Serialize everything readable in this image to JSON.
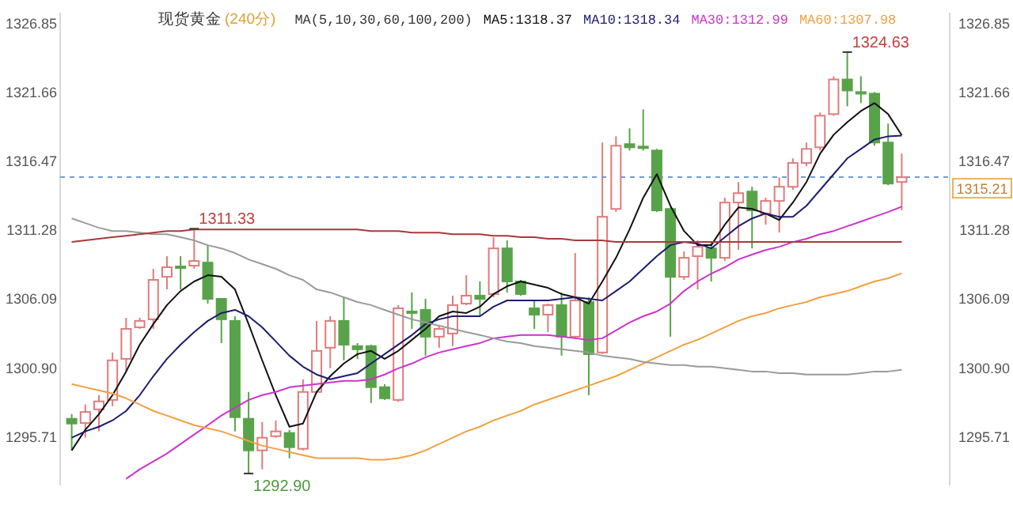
{
  "chart_data": {
    "type": "candlestick",
    "title": "现货黄金",
    "subtitle": "(240分)",
    "annotations": [
      "MA(5,10,30,60,100,200)",
      "MA5:1318.37",
      "MA10:1318.34",
      "MA30:1312.99",
      "MA60:1307.98",
      {
        "text": "1311.33",
        "y": 1311.33
      },
      "1292.90",
      "1324.63"
    ],
    "categories": [
      null,
      null,
      null,
      null,
      null,
      null,
      null,
      null,
      null,
      null,
      null,
      null,
      null,
      null,
      null,
      null,
      null,
      null,
      null,
      null,
      null,
      null,
      null,
      null,
      null,
      null,
      null,
      null,
      null,
      null,
      null,
      null,
      null,
      null,
      null,
      null,
      null,
      null,
      null,
      null,
      null,
      null,
      null,
      null,
      null,
      null,
      null,
      null,
      null,
      null,
      null,
      null,
      null,
      null,
      null,
      null,
      null,
      null,
      null,
      null,
      null,
      null
    ],
    "ohlc": [
      [
        1297.02,
        1297.37,
        1294.64,
        1296.66
      ],
      [
        1296.7,
        1298.1,
        1295.6,
        1297.53
      ],
      [
        1297.73,
        1298.8,
        1296.07,
        1298.33
      ],
      [
        1298.44,
        1302.01,
        1297.97,
        1301.42
      ],
      [
        1301.53,
        1304.62,
        1300.58,
        1303.79
      ],
      [
        1303.91,
        1304.62,
        1303.79,
        1304.39
      ],
      [
        1304.51,
        1308.31,
        1303.79,
        1307.48
      ],
      [
        1307.71,
        1309.26,
        1306.76,
        1308.43
      ],
      [
        1308.49,
        1309.26,
        1306.76,
        1308.43
      ],
      [
        1308.55,
        1311.33,
        1308.31,
        1308.9
      ],
      [
        1308.78,
        1310.09,
        1305.69,
        1306.05
      ],
      [
        1306.05,
        1306.05,
        1302.72,
        1304.51
      ],
      [
        1304.39,
        1304.74,
        1296.07,
        1297.14
      ],
      [
        1297.02,
        1299.04,
        1292.9,
        1294.64
      ],
      [
        1294.64,
        1296.78,
        1293.21,
        1295.59
      ],
      [
        1295.71,
        1296.9,
        1295.59,
        1296.07
      ],
      [
        1295.95,
        1296.19,
        1294.05,
        1294.88
      ],
      [
        1294.76,
        1299.99,
        1294.64,
        1299.04
      ],
      [
        1299.04,
        1304.39,
        1298.92,
        1302.13
      ],
      [
        1302.37,
        1304.74,
        1300.82,
        1304.39
      ],
      [
        1304.39,
        1306.17,
        1301.42,
        1302.6
      ],
      [
        1302.49,
        1302.72,
        1301.53,
        1302.25
      ],
      [
        1302.49,
        1302.6,
        1298.21,
        1299.4
      ],
      [
        1299.4,
        1299.63,
        1298.44,
        1298.56
      ],
      [
        1298.44,
        1305.58,
        1298.3,
        1305.34
      ],
      [
        1305.1,
        1306.53,
        1303.79,
        1305.04
      ],
      [
        1305.22,
        1306.05,
        1301.77,
        1303.2
      ],
      [
        1303.2,
        1304.03,
        1302.37,
        1303.79
      ],
      [
        1303.44,
        1306.29,
        1302.49,
        1305.58
      ],
      [
        1305.69,
        1307.83,
        1305.58,
        1306.29
      ],
      [
        1306.29,
        1307.36,
        1304.74,
        1306.05
      ],
      [
        1306.41,
        1310.69,
        1306.17,
        1309.85
      ],
      [
        1309.85,
        1310.45,
        1306.53,
        1307.36
      ],
      [
        1307.36,
        1307.48,
        1306.29,
        1306.41
      ],
      [
        1305.34,
        1305.93,
        1303.79,
        1304.86
      ],
      [
        1304.86,
        1305.69,
        1303.55,
        1305.58
      ],
      [
        1305.58,
        1306.53,
        1301.77,
        1303.2
      ],
      [
        1303.2,
        1309.5,
        1303.1,
        1305.93
      ],
      [
        1305.81,
        1306.17,
        1298.8,
        1301.89
      ],
      [
        1302.01,
        1317.82,
        1301.89,
        1312.23
      ],
      [
        1312.82,
        1318.29,
        1312.6,
        1317.58
      ],
      [
        1317.7,
        1318.89,
        1317.22,
        1317.46
      ],
      [
        1317.52,
        1320.31,
        1317.22,
        1317.4
      ],
      [
        1317.22,
        1317.34,
        1312.59,
        1312.71
      ],
      [
        1312.82,
        1312.94,
        1303.2,
        1307.71
      ],
      [
        1307.71,
        1309.62,
        1307.48,
        1309.14
      ],
      [
        1309.26,
        1310.45,
        1306.76,
        1309.97
      ],
      [
        1309.85,
        1310.33,
        1307.36,
        1309.14
      ],
      [
        1309.14,
        1313.66,
        1308.9,
        1313.3
      ],
      [
        1313.3,
        1314.85,
        1309.74,
        1314.01
      ],
      [
        1314.13,
        1314.49,
        1309.85,
        1312.71
      ],
      [
        1312.47,
        1313.66,
        1311.64,
        1313.42
      ],
      [
        1313.42,
        1315.2,
        1311.04,
        1314.49
      ],
      [
        1314.49,
        1316.63,
        1314.25,
        1316.28
      ],
      [
        1316.28,
        1317.82,
        1316.04,
        1317.34
      ],
      [
        1317.46,
        1320.08,
        1317.22,
        1319.84
      ],
      [
        1319.96,
        1322.81,
        1319.84,
        1322.57
      ],
      [
        1322.57,
        1324.63,
        1320.55,
        1321.74
      ],
      [
        1321.62,
        1322.81,
        1320.79,
        1321.5
      ],
      [
        1321.5,
        1321.62,
        1317.58,
        1317.82
      ],
      [
        1317.82,
        1319.24,
        1314.61,
        1314.73
      ],
      [
        1314.85,
        1316.99,
        1312.71,
        1315.21
      ]
    ],
    "colors": [
      "#58a34a",
      "#e07b7b",
      "#e07b7b",
      "#e07b7b",
      "#e07b7b",
      "#e07b7b",
      "#e07b7b",
      "#e07b7b",
      "#58a34a",
      "#e07b7b",
      "#58a34a",
      "#58a34a",
      "#58a34a",
      "#58a34a",
      "#e07b7b",
      "#e07b7b",
      "#58a34a",
      "#e07b7b",
      "#e07b7b",
      "#e07b7b",
      "#58a34a",
      "#58a34a",
      "#58a34a",
      "#58a34a",
      "#e07b7b",
      "#58a34a",
      "#58a34a",
      "#e07b7b",
      "#e07b7b",
      "#e07b7b",
      "#58a34a",
      "#e07b7b",
      "#58a34a",
      "#58a34a",
      "#58a34a",
      "#e07b7b",
      "#58a34a",
      "#e07b7b",
      "#58a34a",
      "#e07b7b",
      "#e07b7b",
      "#58a34a",
      "#58a34a",
      "#58a34a",
      "#58a34a",
      "#e07b7b",
      "#e07b7b",
      "#58a34a",
      "#e07b7b",
      "#e07b7b",
      "#58a34a",
      "#e07b7b",
      "#e07b7b",
      "#e07b7b",
      "#e07b7b",
      "#e07b7b",
      "#e07b7b",
      "#58a34a",
      "#58a34a",
      "#58a34a",
      "#58a34a",
      "#e07b7b"
    ],
    "series": [
      {
        "type": "line",
        "color": "#111111",
        "values": [
          1294.64,
          1296.19,
          1297.37,
          1298.8,
          1300.58,
          1302.6,
          1304.15,
          1305.58,
          1306.64,
          1307.36,
          1307.83,
          1307.71,
          1306.76,
          1304.15,
          1301.42,
          1298.8,
          1296.42,
          1296.66,
          1299.04,
          1300.23,
          1301.18,
          1301.89,
          1302.13,
          1301.53,
          1302.13,
          1302.96,
          1303.79,
          1304.74,
          1305.1,
          1304.98,
          1305.46,
          1306.41,
          1307.0,
          1307.36,
          1307.12,
          1306.88,
          1306.41,
          1306.17,
          1305.69,
          1307.36,
          1309.14,
          1311.28,
          1313.66,
          1315.44,
          1313.06,
          1311.16,
          1310.09,
          1310.09,
          1311.64,
          1312.94,
          1312.82,
          1312.47,
          1311.99,
          1313.3,
          1314.85,
          1316.98,
          1318.41,
          1319.36,
          1320.19,
          1320.79,
          1319.96,
          1318.37
        ]
      },
      {
        "type": "line",
        "color": "#1c1c6e",
        "values": [
          1295.59,
          1296.07,
          1296.42,
          1296.9,
          1297.61,
          1298.8,
          1300.23,
          1301.53,
          1302.6,
          1303.55,
          1304.39,
          1304.98,
          1305.22,
          1304.74,
          1303.91,
          1302.84,
          1301.77,
          1300.94,
          1300.35,
          1299.99,
          1300.23,
          1300.46,
          1301.18,
          1301.89,
          1302.6,
          1303.32,
          1304.15,
          1304.51,
          1304.74,
          1304.74,
          1304.74,
          1305.46,
          1305.93,
          1305.93,
          1305.93,
          1305.93,
          1306.05,
          1306.17,
          1306.05,
          1305.93,
          1306.64,
          1307.36,
          1308.31,
          1309.26,
          1310.09,
          1310.33,
          1310.21,
          1309.85,
          1310.69,
          1311.52,
          1312.11,
          1312.47,
          1312.23,
          1312.23,
          1313.06,
          1314.25,
          1315.44,
          1316.63,
          1317.34,
          1318.05,
          1318.29,
          1318.34
        ]
      },
      {
        "type": "line",
        "color": "#cc33cc",
        "values": [
          null,
          null,
          null,
          null,
          1292.5,
          1293.21,
          1293.81,
          1294.4,
          1295.12,
          1295.83,
          1296.54,
          1297.26,
          1297.85,
          1298.44,
          1298.8,
          1299.04,
          1299.39,
          1299.51,
          1299.63,
          1299.75,
          1299.87,
          1299.87,
          1299.99,
          1300.35,
          1300.82,
          1301.18,
          1301.65,
          1302.01,
          1302.25,
          1302.49,
          1302.72,
          1303.08,
          1303.2,
          1303.32,
          1303.32,
          1303.32,
          1303.2,
          1303.08,
          1302.96,
          1303.08,
          1303.67,
          1304.27,
          1304.74,
          1305.1,
          1305.69,
          1306.64,
          1307.36,
          1307.95,
          1308.43,
          1309.02,
          1309.38,
          1309.73,
          1309.97,
          1310.33,
          1310.57,
          1310.92,
          1311.16,
          1311.52,
          1311.87,
          1312.23,
          1312.59,
          1312.99
        ]
      },
      {
        "type": "line",
        "color": "#f0a040",
        "values": [
          1299.63,
          1299.39,
          1299.16,
          1298.92,
          1298.56,
          1298.09,
          1297.61,
          1297.26,
          1296.9,
          1296.54,
          1296.3,
          1296.07,
          1295.71,
          1295.35,
          1295.0,
          1294.76,
          1294.52,
          1294.28,
          1294.05,
          1294.05,
          1294.05,
          1294.05,
          1293.93,
          1293.93,
          1294.05,
          1294.28,
          1294.64,
          1295.12,
          1295.59,
          1296.07,
          1296.42,
          1296.9,
          1297.26,
          1297.61,
          1298.09,
          1298.44,
          1298.8,
          1299.16,
          1299.51,
          1299.87,
          1300.23,
          1300.7,
          1301.18,
          1301.65,
          1302.13,
          1302.6,
          1302.96,
          1303.44,
          1303.91,
          1304.39,
          1304.74,
          1304.98,
          1305.34,
          1305.58,
          1305.81,
          1306.17,
          1306.41,
          1306.64,
          1307.0,
          1307.36,
          1307.6,
          1307.98
        ]
      },
      {
        "type": "line",
        "color": "#9a9a9a",
        "values": [
          1312.11,
          1311.76,
          1311.4,
          1311.16,
          1311.16,
          1311.04,
          1310.92,
          1310.92,
          1310.69,
          1310.45,
          1310.09,
          1309.85,
          1309.5,
          1309.02,
          1308.67,
          1308.31,
          1307.83,
          1307.48,
          1306.76,
          1306.53,
          1306.17,
          1305.81,
          1305.58,
          1305.22,
          1304.86,
          1304.51,
          1304.27,
          1304.03,
          1303.79,
          1303.55,
          1303.32,
          1303.08,
          1302.84,
          1302.72,
          1302.49,
          1302.37,
          1302.25,
          1302.13,
          1302.01,
          1301.77,
          1301.65,
          1301.53,
          1301.3,
          1301.18,
          1301.06,
          1301.06,
          1300.94,
          1300.94,
          1300.82,
          1300.7,
          1300.58,
          1300.58,
          1300.46,
          1300.46,
          1300.35,
          1300.35,
          1300.35,
          1300.35,
          1300.46,
          1300.58,
          1300.58,
          1300.7
        ]
      },
      {
        "type": "line",
        "color": "#a83a3a",
        "values": [
          1310.33,
          1310.45,
          1310.57,
          1310.69,
          1310.8,
          1310.92,
          1311.04,
          1311.16,
          1311.16,
          1311.28,
          1311.28,
          1311.28,
          1311.28,
          1311.28,
          1311.28,
          1311.28,
          1311.28,
          1311.28,
          1311.28,
          1311.28,
          1311.28,
          1311.28,
          1311.16,
          1311.16,
          1311.16,
          1311.04,
          1311.04,
          1311.04,
          1310.92,
          1310.92,
          1310.92,
          1310.8,
          1310.8,
          1310.69,
          1310.69,
          1310.57,
          1310.57,
          1310.45,
          1310.45,
          1310.45,
          1310.33,
          1310.33,
          1310.33,
          1310.33,
          1310.33,
          1310.33,
          1310.33,
          1310.33,
          1310.33,
          1310.33,
          1310.33,
          1310.33,
          1310.33,
          1310.33,
          1310.33,
          1310.33,
          1310.33,
          1310.33,
          1310.33,
          1310.33,
          1310.33,
          1310.33
        ]
      }
    ],
    "ref_lines": [
      {
        "axis": "y",
        "value": 1315.21,
        "label": "1315.21",
        "color": "#6a9fd8",
        "line_style": "dashed"
      }
    ],
    "ylim": [
      1292.0,
      1327.6
    ],
    "yticks": [
      1295.71,
      {
        "value": 1300.9,
        "label": "1300.90"
      },
      1306.09,
      1311.28,
      1316.47,
      1321.66,
      1326.85
    ],
    "y2lim": [
      1292.0,
      1327.6
    ],
    "y2ticks": [
      1295.71,
      {
        "value": 1300.9,
        "label": "1300.90"
      },
      1306.09,
      1311.28,
      1316.47,
      1321.66,
      1326.85
    ],
    "grid": false
  }
}
